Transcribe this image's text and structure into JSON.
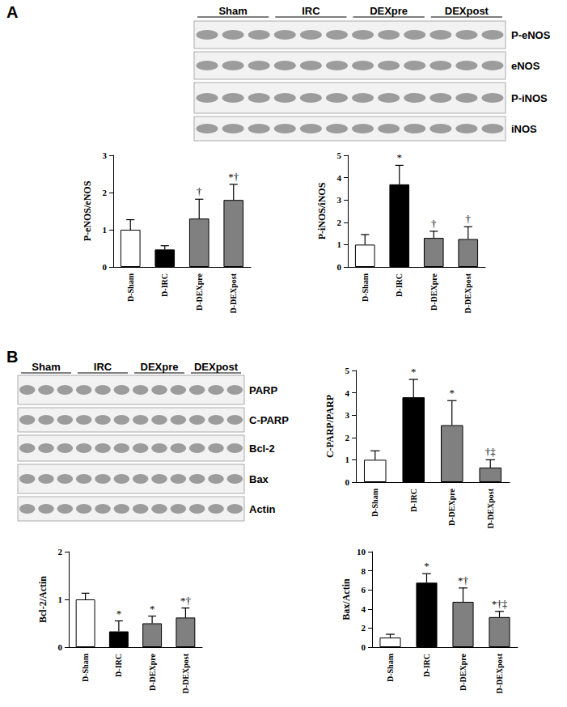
{
  "panels": [
    {
      "label": "A",
      "blot": {
        "groups": [
          "Sham",
          "IRC",
          "DEXpre",
          "DEXpost"
        ],
        "rows": [
          "P-eNOS",
          "eNOS",
          "P-iNOS",
          "iNOS"
        ]
      }
    },
    {
      "label": "B",
      "blot": {
        "groups": [
          "Sham",
          "IRC",
          "DEXpre",
          "DEXpost"
        ],
        "rows": [
          "PARP",
          "C-PARP",
          "Bcl-2",
          "Bax",
          "Actin"
        ]
      }
    }
  ],
  "chart_data": [
    {
      "type": "bar",
      "y_label": "P-eNOS/eNOS",
      "categories": [
        "D-Sham",
        "D-IRC",
        "D-DEXpre",
        "D-DEXpost"
      ],
      "values": [
        1.0,
        0.47,
        1.3,
        1.8
      ],
      "errors": [
        0.27,
        0.1,
        0.52,
        0.42
      ],
      "annotations": [
        null,
        null,
        "†",
        "*†"
      ],
      "colors": [
        "#ffffff",
        "#000000",
        "#808080",
        "#808080"
      ],
      "ylim": [
        0,
        3
      ],
      "yticks": [
        0,
        1,
        2,
        3
      ],
      "grid": false
    },
    {
      "type": "bar",
      "y_label": "P-iNOS/iNOS",
      "categories": [
        "D-Sham",
        "D-IRC",
        "D-DEXpre",
        "D-DEXpost"
      ],
      "values": [
        1.0,
        3.7,
        1.3,
        1.25
      ],
      "errors": [
        0.45,
        0.85,
        0.3,
        0.55
      ],
      "annotations": [
        null,
        "*",
        "†",
        "†"
      ],
      "colors": [
        "#ffffff",
        "#000000",
        "#808080",
        "#808080"
      ],
      "ylim": [
        0,
        5
      ],
      "yticks": [
        0,
        1,
        2,
        3,
        4,
        5
      ],
      "grid": false
    },
    {
      "type": "bar",
      "y_label": "C-PARP/PARP",
      "categories": [
        "D-Sham",
        "D-IRC",
        "D-DEXpre",
        "D-DEXpost"
      ],
      "values": [
        1.0,
        3.8,
        2.55,
        0.65
      ],
      "errors": [
        0.4,
        0.8,
        1.1,
        0.35
      ],
      "annotations": [
        null,
        "*",
        "*",
        "†‡"
      ],
      "colors": [
        "#ffffff",
        "#000000",
        "#808080",
        "#808080"
      ],
      "ylim": [
        0,
        5
      ],
      "yticks": [
        0,
        1,
        2,
        3,
        4,
        5
      ],
      "grid": false
    },
    {
      "type": "bar",
      "y_label": "Bcl-2/Actin",
      "categories": [
        "D-Sham",
        "D-IRC",
        "D-DEXpre",
        "D-DEXpost"
      ],
      "values": [
        1.0,
        0.33,
        0.5,
        0.62
      ],
      "errors": [
        0.13,
        0.22,
        0.15,
        0.2
      ],
      "annotations": [
        null,
        "*",
        "*",
        "*†"
      ],
      "colors": [
        "#ffffff",
        "#000000",
        "#808080",
        "#808080"
      ],
      "ylim": [
        0,
        2
      ],
      "yticks": [
        0,
        1,
        2
      ],
      "grid": false
    },
    {
      "type": "bar",
      "y_label": "Bax/Actin",
      "categories": [
        "D-Sham",
        "D-IRC",
        "D-DEXpre",
        "D-DEXpost"
      ],
      "values": [
        1.0,
        6.75,
        4.75,
        3.15
      ],
      "errors": [
        0.35,
        0.95,
        1.45,
        0.6
      ],
      "annotations": [
        null,
        "*",
        "*†",
        "*†‡"
      ],
      "colors": [
        "#ffffff",
        "#000000",
        "#808080",
        "#808080"
      ],
      "ylim": [
        0,
        10
      ],
      "yticks": [
        0,
        2,
        4,
        6,
        8,
        10
      ],
      "grid": false
    }
  ]
}
